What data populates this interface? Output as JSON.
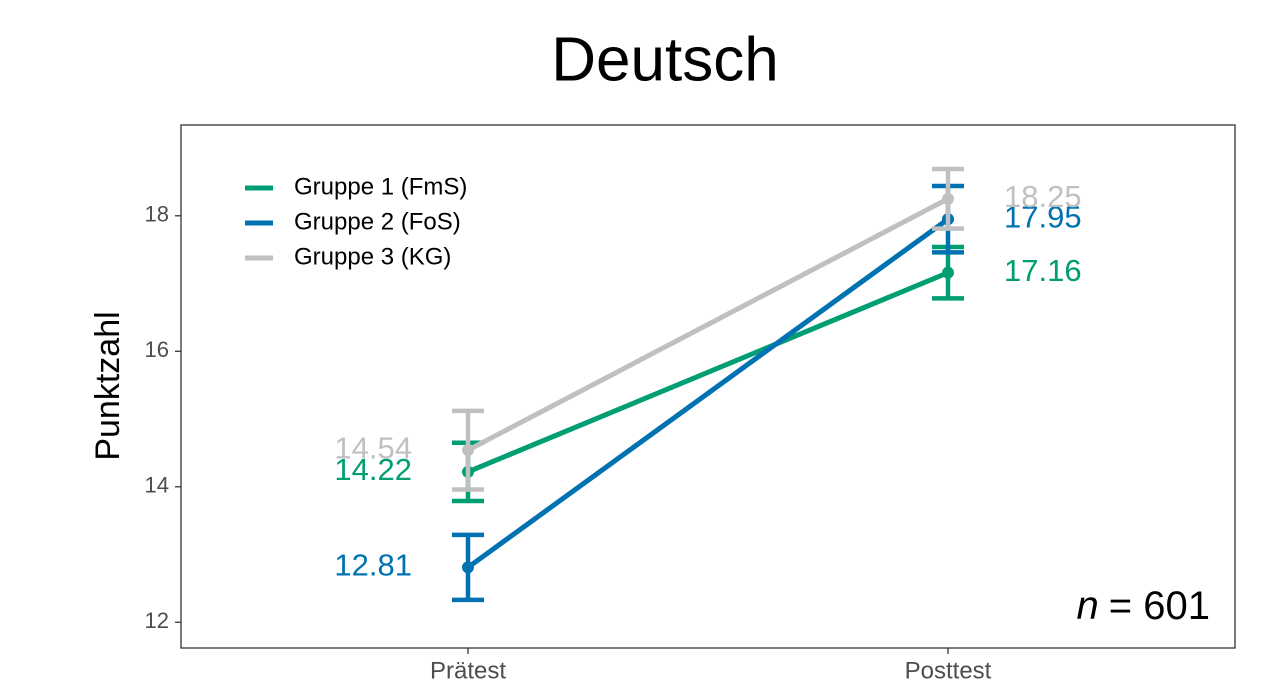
{
  "chart_data": {
    "type": "line",
    "title": "Deutsch",
    "ylabel": "Punktzahl",
    "categories": [
      "Prätest",
      "Posttest"
    ],
    "series": [
      {
        "name": "Gruppe 1 (FmS)",
        "color": "#009E73",
        "values": [
          14.22,
          17.16
        ],
        "errors": [
          0.43,
          0.38
        ]
      },
      {
        "name": "Gruppe 2 (FoS)",
        "color": "#0072B2",
        "values": [
          12.81,
          17.95
        ],
        "errors": [
          0.48,
          0.49
        ]
      },
      {
        "name": "Gruppe 3 (KG)",
        "color": "#C0C0C0",
        "values": [
          14.54,
          18.25
        ],
        "errors": [
          0.58,
          0.44
        ]
      }
    ],
    "ylim": [
      11.62,
      19.34
    ],
    "yticks": [
      12,
      14,
      16,
      18
    ],
    "legend": "upper left",
    "annotation": [
      "n",
      "= 601"
    ]
  }
}
